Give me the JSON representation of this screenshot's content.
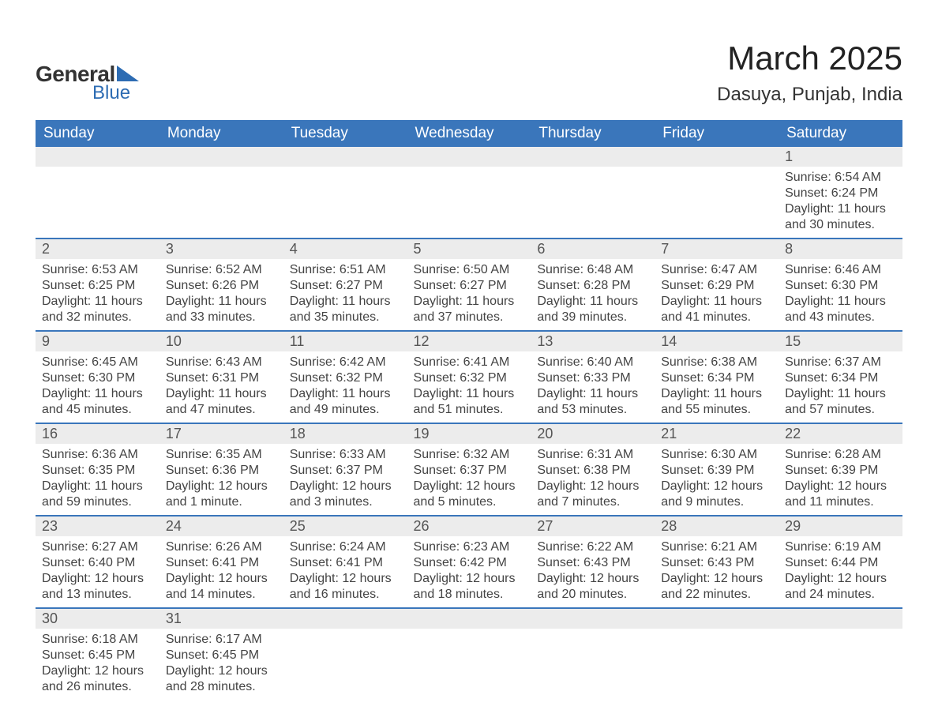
{
  "logo": {
    "part1": "General",
    "part2": "Blue"
  },
  "title": "March 2025",
  "location": "Dasuya, Punjab, India",
  "colors": {
    "header_bg": "#3a76bb",
    "header_text": "#ffffff",
    "daynum_bg": "#ececec",
    "border": "#3a76bb",
    "body_text": "#444444",
    "logo_blue": "#2d6cb3"
  },
  "day_headers": [
    "Sunday",
    "Monday",
    "Tuesday",
    "Wednesday",
    "Thursday",
    "Friday",
    "Saturday"
  ],
  "labels": {
    "sunrise": "Sunrise: ",
    "sunset": "Sunset: ",
    "daylight": "Daylight: "
  },
  "weeks": [
    [
      null,
      null,
      null,
      null,
      null,
      null,
      {
        "n": "1",
        "sr": "6:54 AM",
        "ss": "6:24 PM",
        "dl": "11 hours and 30 minutes."
      }
    ],
    [
      {
        "n": "2",
        "sr": "6:53 AM",
        "ss": "6:25 PM",
        "dl": "11 hours and 32 minutes."
      },
      {
        "n": "3",
        "sr": "6:52 AM",
        "ss": "6:26 PM",
        "dl": "11 hours and 33 minutes."
      },
      {
        "n": "4",
        "sr": "6:51 AM",
        "ss": "6:27 PM",
        "dl": "11 hours and 35 minutes."
      },
      {
        "n": "5",
        "sr": "6:50 AM",
        "ss": "6:27 PM",
        "dl": "11 hours and 37 minutes."
      },
      {
        "n": "6",
        "sr": "6:48 AM",
        "ss": "6:28 PM",
        "dl": "11 hours and 39 minutes."
      },
      {
        "n": "7",
        "sr": "6:47 AM",
        "ss": "6:29 PM",
        "dl": "11 hours and 41 minutes."
      },
      {
        "n": "8",
        "sr": "6:46 AM",
        "ss": "6:30 PM",
        "dl": "11 hours and 43 minutes."
      }
    ],
    [
      {
        "n": "9",
        "sr": "6:45 AM",
        "ss": "6:30 PM",
        "dl": "11 hours and 45 minutes."
      },
      {
        "n": "10",
        "sr": "6:43 AM",
        "ss": "6:31 PM",
        "dl": "11 hours and 47 minutes."
      },
      {
        "n": "11",
        "sr": "6:42 AM",
        "ss": "6:32 PM",
        "dl": "11 hours and 49 minutes."
      },
      {
        "n": "12",
        "sr": "6:41 AM",
        "ss": "6:32 PM",
        "dl": "11 hours and 51 minutes."
      },
      {
        "n": "13",
        "sr": "6:40 AM",
        "ss": "6:33 PM",
        "dl": "11 hours and 53 minutes."
      },
      {
        "n": "14",
        "sr": "6:38 AM",
        "ss": "6:34 PM",
        "dl": "11 hours and 55 minutes."
      },
      {
        "n": "15",
        "sr": "6:37 AM",
        "ss": "6:34 PM",
        "dl": "11 hours and 57 minutes."
      }
    ],
    [
      {
        "n": "16",
        "sr": "6:36 AM",
        "ss": "6:35 PM",
        "dl": "11 hours and 59 minutes."
      },
      {
        "n": "17",
        "sr": "6:35 AM",
        "ss": "6:36 PM",
        "dl": "12 hours and 1 minute."
      },
      {
        "n": "18",
        "sr": "6:33 AM",
        "ss": "6:37 PM",
        "dl": "12 hours and 3 minutes."
      },
      {
        "n": "19",
        "sr": "6:32 AM",
        "ss": "6:37 PM",
        "dl": "12 hours and 5 minutes."
      },
      {
        "n": "20",
        "sr": "6:31 AM",
        "ss": "6:38 PM",
        "dl": "12 hours and 7 minutes."
      },
      {
        "n": "21",
        "sr": "6:30 AM",
        "ss": "6:39 PM",
        "dl": "12 hours and 9 minutes."
      },
      {
        "n": "22",
        "sr": "6:28 AM",
        "ss": "6:39 PM",
        "dl": "12 hours and 11 minutes."
      }
    ],
    [
      {
        "n": "23",
        "sr": "6:27 AM",
        "ss": "6:40 PM",
        "dl": "12 hours and 13 minutes."
      },
      {
        "n": "24",
        "sr": "6:26 AM",
        "ss": "6:41 PM",
        "dl": "12 hours and 14 minutes."
      },
      {
        "n": "25",
        "sr": "6:24 AM",
        "ss": "6:41 PM",
        "dl": "12 hours and 16 minutes."
      },
      {
        "n": "26",
        "sr": "6:23 AM",
        "ss": "6:42 PM",
        "dl": "12 hours and 18 minutes."
      },
      {
        "n": "27",
        "sr": "6:22 AM",
        "ss": "6:43 PM",
        "dl": "12 hours and 20 minutes."
      },
      {
        "n": "28",
        "sr": "6:21 AM",
        "ss": "6:43 PM",
        "dl": "12 hours and 22 minutes."
      },
      {
        "n": "29",
        "sr": "6:19 AM",
        "ss": "6:44 PM",
        "dl": "12 hours and 24 minutes."
      }
    ],
    [
      {
        "n": "30",
        "sr": "6:18 AM",
        "ss": "6:45 PM",
        "dl": "12 hours and 26 minutes."
      },
      {
        "n": "31",
        "sr": "6:17 AM",
        "ss": "6:45 PM",
        "dl": "12 hours and 28 minutes."
      },
      null,
      null,
      null,
      null,
      null
    ]
  ]
}
